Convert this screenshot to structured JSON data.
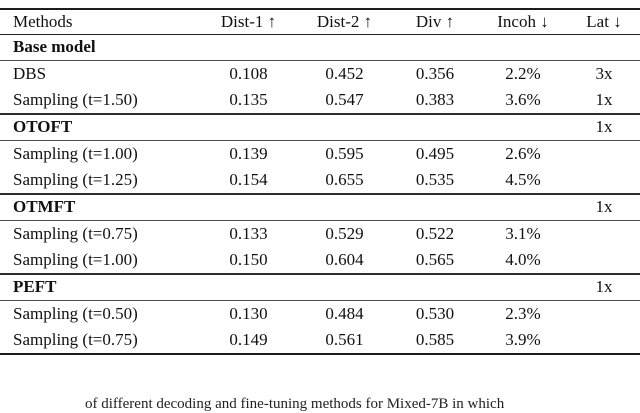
{
  "table": {
    "columns": [
      {
        "label": "Methods"
      },
      {
        "label": "Dist-1 ↑"
      },
      {
        "label": "Dist-2 ↑"
      },
      {
        "label": "Div ↑"
      },
      {
        "label": "Incoh ↓"
      },
      {
        "label": "Lat ↓"
      }
    ],
    "rows": [
      {
        "method": "Base model",
        "dist1": "",
        "dist2": "",
        "div": "",
        "incoh": "",
        "lat": ""
      },
      {
        "method": "DBS",
        "dist1": "0.108",
        "dist2": "0.452",
        "div": "0.356",
        "incoh": "2.2%",
        "lat": "3x"
      },
      {
        "method": "Sampling (t=1.50)",
        "dist1": "0.135",
        "dist2": "0.547",
        "div": "0.383",
        "incoh": "3.6%",
        "lat": "1x"
      },
      {
        "method": "OTOFT",
        "dist1": "",
        "dist2": "",
        "div": "",
        "incoh": "",
        "lat": "1x"
      },
      {
        "method": "Sampling (t=1.00)",
        "dist1": "0.139",
        "dist2": "0.595",
        "div": "0.495",
        "incoh": "2.6%",
        "lat": ""
      },
      {
        "method": "Sampling (t=1.25)",
        "dist1": "0.154",
        "dist2": "0.655",
        "div": "0.535",
        "incoh": "4.5%",
        "lat": ""
      },
      {
        "method": "OTMFT",
        "dist1": "",
        "dist2": "",
        "div": "",
        "incoh": "",
        "lat": "1x"
      },
      {
        "method": "Sampling (t=0.75)",
        "dist1": "0.133",
        "dist2": "0.529",
        "div": "0.522",
        "incoh": "3.1%",
        "lat": ""
      },
      {
        "method": "Sampling (t=1.00)",
        "dist1": "0.150",
        "dist2": "0.604",
        "div": "0.565",
        "incoh": "4.0%",
        "lat": ""
      },
      {
        "method": "PEFT",
        "dist1": "",
        "dist2": "",
        "div": "",
        "incoh": "",
        "lat": "1x"
      },
      {
        "method": "Sampling (t=0.50)",
        "dist1": "0.130",
        "dist2": "0.484",
        "div": "0.530",
        "incoh": "2.3%",
        "lat": ""
      },
      {
        "method": "Sampling (t=0.75)",
        "dist1": "0.149",
        "dist2": "0.561",
        "div": "0.585",
        "incoh": "3.9%",
        "lat": ""
      }
    ]
  },
  "caption": {
    "text": "of different decoding and fine-tuning methods for Mixed-7B in which"
  }
}
